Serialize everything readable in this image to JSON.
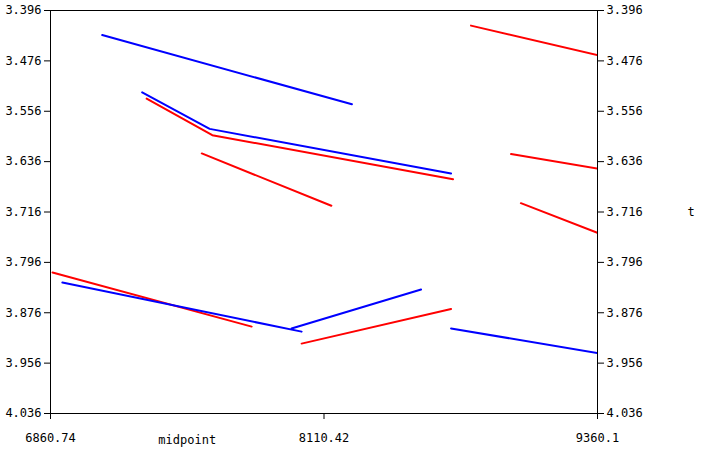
{
  "chart_data": {
    "type": "wiggle",
    "xlabel": "midpoint",
    "ylabel": "t",
    "xlim": [
      6860.74,
      9360.1
    ],
    "xticks": [
      6860.74,
      8110.42,
      9360.1
    ],
    "ylim": [
      3.396,
      4.036
    ],
    "yticks": [
      3.396,
      3.476,
      3.556,
      3.636,
      3.716,
      3.796,
      3.876,
      3.956,
      4.036
    ],
    "series": [
      {
        "color": "#0000ff",
        "values": [
          [
            7279.6,
            3.526
          ],
          [
            7588.0,
            3.584
          ],
          [
            8691.0,
            3.655
          ]
        ]
      },
      {
        "color": "#ff0000",
        "values": [
          [
            7300.0,
            3.536
          ],
          [
            7600.0,
            3.594
          ],
          [
            8700.0,
            3.664
          ]
        ]
      },
      {
        "color": "#ff0000",
        "values": [
          [
            8965.0,
            3.624
          ],
          [
            9360.0,
            3.647
          ]
        ]
      },
      {
        "color": "#0000ff",
        "values": [
          [
            7097.0,
            3.435
          ],
          [
            8238.0,
            3.545
          ]
        ]
      },
      {
        "color": "#ff0000",
        "values": [
          [
            7552.0,
            3.623
          ],
          [
            8144.0,
            3.706
          ]
        ]
      },
      {
        "color": "#ff0000",
        "values": [
          [
            6870.0,
            3.812
          ],
          [
            7780.0,
            3.898
          ]
        ]
      },
      {
        "color": "#0000ff",
        "values": [
          [
            6915.0,
            3.828
          ],
          [
            8008.0,
            3.906
          ]
        ]
      },
      {
        "color": "#ff0000",
        "values": [
          [
            8008.0,
            3.925
          ],
          [
            8691.0,
            3.87
          ]
        ]
      },
      {
        "color": "#0000ff",
        "values": [
          [
            7962.0,
            3.901
          ],
          [
            8554.0,
            3.839
          ]
        ]
      },
      {
        "color": "#0000ff",
        "values": [
          [
            8691.0,
            3.901
          ],
          [
            9360.0,
            3.94
          ]
        ]
      },
      {
        "color": "#ff0000",
        "values": [
          [
            8782.0,
            3.42
          ],
          [
            9360.0,
            3.467
          ]
        ]
      },
      {
        "color": "#ff0000",
        "values": [
          [
            9010.0,
            3.702
          ],
          [
            9360.0,
            3.749
          ]
        ]
      }
    ]
  }
}
